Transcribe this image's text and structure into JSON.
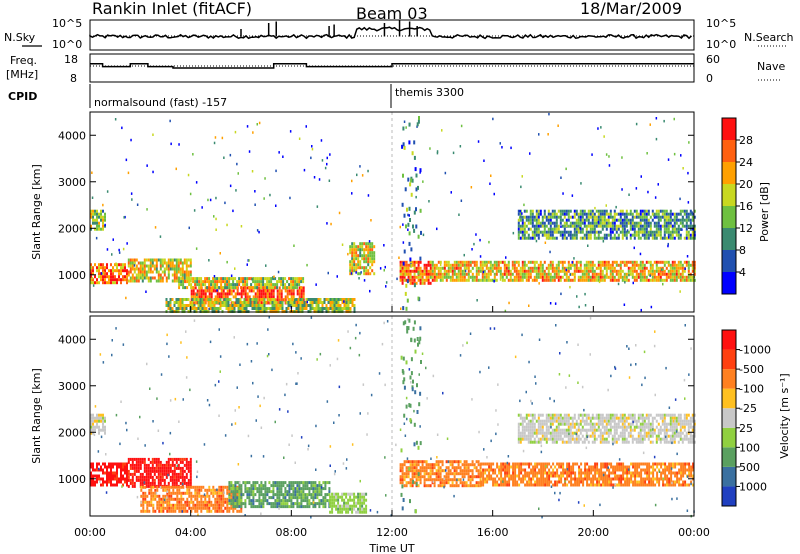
{
  "header": {
    "title": "Rankin Inlet (fitACF)",
    "beam": "Beam 03",
    "date": "18/Mar/2009"
  },
  "left_labels": {
    "nsky": "N.Sky",
    "freq_line1": "Freq.",
    "freq_line2": "[MHz]",
    "cpid": "CPID"
  },
  "right_labels": {
    "nsearch": "N.Search",
    "nave": "Nave"
  },
  "chart_data": [
    {
      "type": "line",
      "panel": "noise",
      "series": [
        {
          "name": "N.Sky"
        },
        {
          "name": "N.Search"
        }
      ],
      "yticks_left": [
        "10^5",
        "10^0"
      ],
      "yticks_right": [
        "10^5",
        "10^0"
      ],
      "spikes": [
        {
          "t": 6.0,
          "v": 0.7
        },
        {
          "t": 7.1,
          "v": 0.9
        },
        {
          "t": 7.4,
          "v": 0.95
        },
        {
          "t": 9.5,
          "v": 0.8
        },
        {
          "t": 9.7,
          "v": 0.85
        },
        {
          "t": 11.7,
          "v": 0.9
        },
        {
          "t": 12.3,
          "v": 1.0
        },
        {
          "t": 12.7,
          "v": 0.95
        },
        {
          "t": 13.0,
          "v": 0.8
        }
      ]
    },
    {
      "type": "line",
      "panel": "frequency",
      "series": [
        {
          "name": "Freq."
        },
        {
          "name": "Nave"
        }
      ],
      "yticks_left": [
        "18",
        "8"
      ],
      "yticks_right": [
        "60",
        "0"
      ],
      "freq_steps": [
        {
          "t0": 0.0,
          "t1": 0.5,
          "v": 0.35
        },
        {
          "t0": 0.5,
          "t1": 1.6,
          "v": 0.45
        },
        {
          "t0": 1.6,
          "t1": 2.3,
          "v": 0.35
        },
        {
          "t0": 2.3,
          "t1": 3.3,
          "v": 0.45
        },
        {
          "t0": 3.3,
          "t1": 7.3,
          "v": 0.5
        },
        {
          "t0": 7.3,
          "t1": 8.6,
          "v": 0.35
        },
        {
          "t0": 8.6,
          "t1": 12.0,
          "v": 0.45
        },
        {
          "t0": 12.0,
          "t1": 24.0,
          "v": 0.35
        }
      ],
      "nave_level": 0.15
    },
    {
      "type": "table",
      "panel": "cpid",
      "entries": [
        {
          "t": 0.0,
          "label": "normalsound (fast) -157"
        },
        {
          "t": 12.0,
          "label": "themis 3300"
        }
      ]
    },
    {
      "type": "heatmap",
      "panel": "power",
      "ylabel": "Slant Range [km]",
      "xlim": [
        0,
        24
      ],
      "ylim": [
        200,
        4500
      ],
      "yticks": [
        1000,
        2000,
        3000,
        4000
      ],
      "colorbar": {
        "label": "Power [dB]",
        "ticks": [
          "4",
          "8",
          "12",
          "16",
          "20",
          "24",
          "28"
        ],
        "colors": [
          "#0000ff",
          "#2050b0",
          "#3a8a70",
          "#6ec040",
          "#c8d820",
          "#ffa000",
          "#ff6010",
          "#ff1010"
        ]
      },
      "bands": [
        {
          "t0": 0.0,
          "t1": 0.6,
          "r0": 2000,
          "r1": 2400,
          "lvl": 0.45
        },
        {
          "t0": 0.0,
          "t1": 1.5,
          "r0": 850,
          "r1": 1250,
          "lvl": 0.8
        },
        {
          "t0": 1.5,
          "t1": 4.0,
          "r0": 850,
          "r1": 1350,
          "lvl": 0.6
        },
        {
          "t0": 4.0,
          "t1": 8.5,
          "r0": 400,
          "r1": 750,
          "lvl": 0.9
        },
        {
          "t0": 3.0,
          "t1": 10.5,
          "r0": 200,
          "r1": 500,
          "lvl": 0.5
        },
        {
          "t0": 3.5,
          "t1": 8.5,
          "r0": 750,
          "r1": 950,
          "lvl": 0.55
        },
        {
          "t0": 10.3,
          "t1": 11.3,
          "r0": 1000,
          "r1": 1700,
          "lvl": 0.6
        },
        {
          "t0": 12.3,
          "t1": 13.5,
          "r0": 800,
          "r1": 1300,
          "lvl": 0.8
        },
        {
          "t0": 13.5,
          "t1": 24.0,
          "r0": 850,
          "r1": 1300,
          "lvl": 0.65
        },
        {
          "t0": 17.0,
          "t1": 24.0,
          "r0": 1800,
          "r1": 2400,
          "lvl": 0.35
        }
      ]
    },
    {
      "type": "heatmap",
      "panel": "velocity",
      "ylabel": "Slant Range [km]",
      "xlabel": "Time UT",
      "xlim": [
        0,
        24
      ],
      "ylim": [
        200,
        4500
      ],
      "yticks": [
        1000,
        2000,
        3000,
        4000
      ],
      "xticks": [
        "00:00",
        "04:00",
        "08:00",
        "12:00",
        "16:00",
        "20:00",
        "00:00"
      ],
      "colorbar": {
        "label": "Velocity [m s⁻¹]",
        "ticks": [
          "1000",
          "500",
          "100",
          "25",
          "-25",
          "-100",
          "-500",
          "-1000"
        ],
        "colors": [
          "#2040c0",
          "#3a70a0",
          "#5aa060",
          "#90d040",
          "#c8c8c8",
          "#ffc020",
          "#ff8020",
          "#ff4010",
          "#ff1010"
        ]
      },
      "bands": [
        {
          "t0": 0.0,
          "t1": 0.6,
          "r0": 2000,
          "r1": 2400,
          "lvl": 4
        },
        {
          "t0": 0.0,
          "t1": 1.5,
          "r0": 850,
          "r1": 1350,
          "lvl": 1
        },
        {
          "t0": 1.5,
          "t1": 4.0,
          "r0": 850,
          "r1": 1450,
          "lvl": 1
        },
        {
          "t0": 2.0,
          "t1": 6.0,
          "r0": 300,
          "r1": 850,
          "lvl": 6
        },
        {
          "t0": 5.5,
          "t1": 9.5,
          "r0": 400,
          "r1": 950,
          "lvl": 2
        },
        {
          "t0": 9.5,
          "t1": 11.0,
          "r0": 300,
          "r1": 700,
          "lvl": 3
        },
        {
          "t0": 12.3,
          "t1": 15.5,
          "r0": 850,
          "r1": 1400,
          "lvl": 6
        },
        {
          "t0": 15.5,
          "t1": 24.0,
          "r0": 850,
          "r1": 1350,
          "lvl": 6
        },
        {
          "t0": 17.0,
          "t1": 24.0,
          "r0": 1800,
          "r1": 2400,
          "lvl": 4
        }
      ]
    }
  ]
}
